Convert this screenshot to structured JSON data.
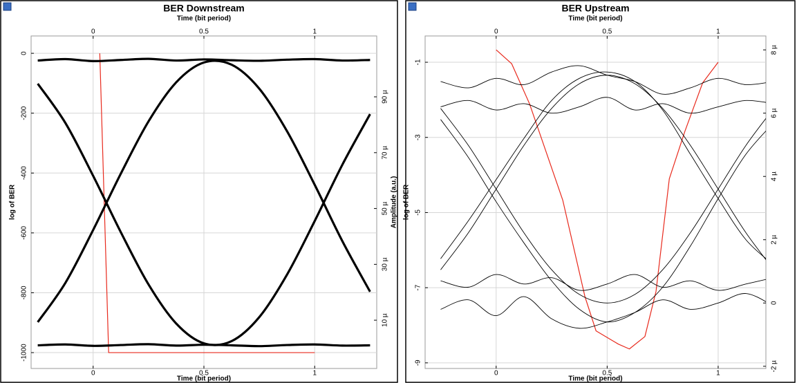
{
  "chart_data": [
    {
      "type": "line",
      "title": "BER Downstream",
      "xlabel": "Time (bit period)",
      "ylabel": "log of BER",
      "y2label": "Amplitude (a.u.)",
      "xlim": [
        -0.28,
        1.28
      ],
      "xticks": [
        0,
        0.5,
        1
      ],
      "ylim": [
        -1053,
        58
      ],
      "yticks": [
        -1000,
        -800,
        -600,
        -400,
        -200,
        0
      ],
      "y2lim": [
        -7.3,
        111.8
      ],
      "y2ticks": [
        {
          "value": 10,
          "label": "10 µ"
        },
        {
          "value": 30,
          "label": "30 µ"
        },
        {
          "value": 50,
          "label": "50 µ"
        },
        {
          "value": 70,
          "label": "70 µ"
        },
        {
          "value": 90,
          "label": "90 µ"
        }
      ],
      "grid": true,
      "x": [
        -0.25,
        -0.125,
        0,
        0.125,
        0.25,
        0.375,
        0.5,
        0.625,
        0.75,
        0.875,
        1,
        1.125,
        1.25
      ],
      "series": [
        {
          "color": "#e8291c",
          "x": [
            0.03,
            0.05,
            0.07,
            0.5,
            1.0
          ],
          "values": [
            0,
            -500,
            -1000,
            -1000,
            -1000
          ]
        },
        {
          "color": "#000000",
          "axis": "y2",
          "values": [
            103,
            103.5,
            102.8,
            103.2,
            103.6,
            103,
            103.4,
            103.1,
            102.9,
            103.3,
            103.5,
            103,
            103.2
          ]
        },
        {
          "color": "#000000",
          "axis": "y2",
          "values": [
            1,
            1.3,
            0.8,
            1.1,
            1.4,
            0.9,
            1.2,
            1,
            0.7,
            1.1,
            1.3,
            0.9,
            1
          ]
        },
        {
          "color": "#000000",
          "axis": "y2",
          "values": [
            9.3,
            23.4,
            42.3,
            62.5,
            81.2,
            95.2,
            102.3,
            101.5,
            92.9,
            77.7,
            58.5,
            38.3,
            20.2
          ]
        },
        {
          "color": "#000000",
          "axis": "y2",
          "values": [
            94.7,
            80.6,
            61.7,
            41.5,
            22.8,
            8.8,
            1.7,
            2.5,
            11.1,
            26.3,
            45.5,
            65.7,
            83.8
          ]
        }
      ]
    },
    {
      "type": "line",
      "title": "BER Upstream",
      "xlabel": "Time (bit period)",
      "ylabel": "log of BER",
      "xlim": [
        -0.32,
        1.215
      ],
      "xticks": [
        0,
        0.5,
        1
      ],
      "ylim": [
        -9.15,
        -0.3
      ],
      "yticks": [
        -9,
        -7,
        -5,
        -3,
        -1
      ],
      "y2lim": [
        -2.07,
        8.44
      ],
      "y2ticks": [
        {
          "value": -2,
          "label": "-2 µ"
        },
        0,
        {
          "value": 2,
          "label": "2 µ"
        },
        {
          "value": 4,
          "label": "4 µ"
        },
        {
          "value": 6,
          "label": "6 µ"
        },
        {
          "value": 8,
          "label": "8 µ"
        }
      ],
      "grid": true,
      "x": [
        -0.25,
        -0.125,
        0,
        0.125,
        0.25,
        0.375,
        0.5,
        0.625,
        0.75,
        0.875,
        1,
        1.125,
        1.25
      ],
      "series": [
        {
          "color": "#e8291c",
          "x": [
            0,
            0.07,
            0.15,
            0.3,
            0.4,
            0.45,
            0.55,
            0.6,
            0.67,
            0.72,
            0.78,
            0.85,
            0.93,
            1.0
          ],
          "values": [
            -0.67,
            -1.04,
            -2.1,
            -4.67,
            -7.24,
            -8.15,
            -8.5,
            -8.63,
            -8.3,
            -7.1,
            -4.1,
            -2.84,
            -1.55,
            -1.0
          ]
        },
        {
          "color": "#000000",
          "axis": "y2",
          "values": [
            7.0,
            6.8,
            7.1,
            6.9,
            7.3,
            7.5,
            7.2,
            7.0,
            6.6,
            6.8,
            7.1,
            6.9,
            7.0
          ]
        },
        {
          "color": "#000000",
          "axis": "y2",
          "values": [
            6.2,
            6.4,
            6.1,
            6.3,
            6.0,
            6.2,
            6.5,
            6.1,
            6.3,
            6.0,
            6.2,
            6.4,
            6.3
          ]
        },
        {
          "color": "#000000",
          "axis": "y2",
          "values": [
            -0.2,
            0.1,
            -0.4,
            0.2,
            -0.5,
            -0.8,
            -0.6,
            -0.3,
            0.1,
            -0.2,
            0.0,
            0.3,
            -0.1
          ]
        },
        {
          "color": "#000000",
          "axis": "y2",
          "values": [
            0.7,
            0.5,
            0.9,
            0.6,
            0.8,
            0.4,
            0.6,
            0.9,
            0.5,
            0.7,
            0.4,
            0.6,
            0.8
          ]
        },
        {
          "color": "#000000",
          "axis": "y2",
          "values": [
            1.05,
            2.22,
            3.6,
            4.98,
            6.15,
            6.93,
            7.2,
            6.93,
            6.15,
            4.98,
            3.6,
            2.22,
            1.05
          ]
        },
        {
          "color": "#000000",
          "axis": "y2",
          "values": [
            6.15,
            4.98,
            3.6,
            2.22,
            1.05,
            0.27,
            0,
            0.27,
            1.05,
            2.22,
            3.6,
            4.98,
            6.15
          ]
        },
        {
          "color": "#000000",
          "axis": "y2",
          "values": [
            1.4,
            2.6,
            3.9,
            5.2,
            6.4,
            7.1,
            7.3,
            7.0,
            6.1,
            4.7,
            3.3,
            2.0,
            1.2
          ]
        },
        {
          "color": "#000000",
          "axis": "y2",
          "values": [
            5.8,
            4.6,
            3.2,
            1.9,
            0.7,
            -0.2,
            -0.6,
            -0.3,
            0.5,
            1.8,
            3.3,
            4.7,
            5.7
          ]
        }
      ]
    }
  ]
}
